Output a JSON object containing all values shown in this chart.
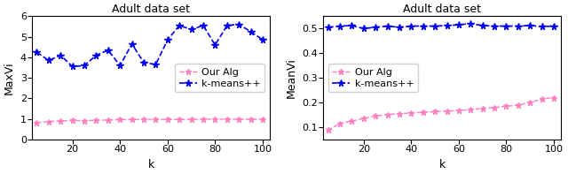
{
  "title": "Adult data set",
  "left_ylabel": "MaxVi",
  "right_ylabel": "MeanVi",
  "xlabel": "k",
  "k_values": [
    5,
    10,
    15,
    20,
    25,
    30,
    35,
    40,
    45,
    50,
    55,
    60,
    65,
    70,
    75,
    80,
    85,
    90,
    95,
    100
  ],
  "left_our_alg": [
    0.82,
    0.88,
    0.9,
    0.93,
    0.92,
    0.94,
    0.95,
    0.97,
    0.97,
    0.98,
    0.98,
    0.98,
    0.98,
    0.98,
    0.99,
    0.99,
    0.99,
    0.99,
    0.98,
    0.99
  ],
  "left_kmeans": [
    4.25,
    3.85,
    4.1,
    3.55,
    3.6,
    4.1,
    4.35,
    3.6,
    4.65,
    3.75,
    3.65,
    4.85,
    5.55,
    5.35,
    5.55,
    4.6,
    5.55,
    5.6,
    5.25,
    4.85
  ],
  "right_our_alg": [
    0.088,
    0.115,
    0.125,
    0.135,
    0.145,
    0.152,
    0.155,
    0.158,
    0.16,
    0.163,
    0.165,
    0.168,
    0.172,
    0.176,
    0.18,
    0.185,
    0.19,
    0.2,
    0.215,
    0.22
  ],
  "right_kmeans": [
    0.505,
    0.51,
    0.512,
    0.5,
    0.505,
    0.51,
    0.505,
    0.51,
    0.51,
    0.51,
    0.512,
    0.515,
    0.52,
    0.512,
    0.51,
    0.51,
    0.51,
    0.512,
    0.508,
    0.51
  ],
  "color_our_alg": "#ff80c0",
  "color_kmeans": "#0000ee",
  "left_ylim": [
    0,
    6
  ],
  "left_yticks": [
    0,
    1,
    2,
    3,
    4,
    5,
    6
  ],
  "right_ylim": [
    0.05,
    0.55
  ],
  "right_yticks": [
    0.1,
    0.2,
    0.3,
    0.4,
    0.5
  ],
  "xticks": [
    20,
    40,
    60,
    80,
    100
  ],
  "legend_our_alg": "Our Alg",
  "legend_kmeans": "k-means++",
  "title_fontsize": 9,
  "label_fontsize": 9,
  "tick_fontsize": 8,
  "legend_fontsize": 8
}
